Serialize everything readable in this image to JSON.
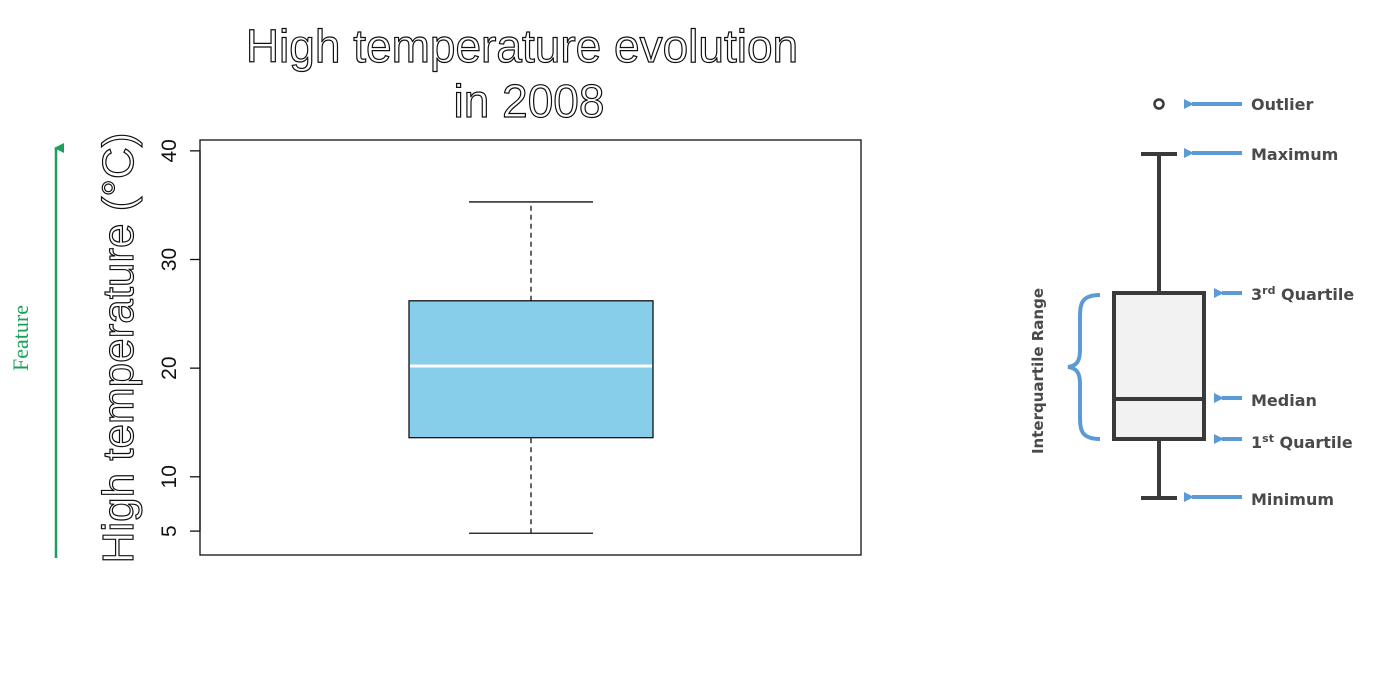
{
  "chart_data": {
    "type": "box",
    "title_line1": "High temperature evolution",
    "title_line2": "in 2008",
    "ylabel": "High temperature (°C)",
    "yticks": [
      5,
      10,
      20,
      30,
      40
    ],
    "ylim": [
      2.8,
      41
    ],
    "series": [
      {
        "min": 4.8,
        "q1": 13.6,
        "median": 20.2,
        "q3": 26.2,
        "max": 35.3
      }
    ],
    "box_color": "#87CEEB",
    "grid": false
  },
  "feature_annotation": {
    "label": "Feature",
    "color": "#1aa05a"
  },
  "anatomy_legend": {
    "labels": {
      "outlier": "Outlier",
      "maximum": "Maximum",
      "q3_base": "3",
      "q3_sup": "rd",
      "q3_rest": " Quartile",
      "median": "Median",
      "q1_base": "1",
      "q1_sup": "st",
      "q1_rest": " Quartile",
      "minimum": "Minimum",
      "iqr": "Interquartile Range"
    },
    "arrow_color": "#5b9bd5",
    "box_fill": "#f2f2f2",
    "line_color": "#3a3a3a"
  }
}
